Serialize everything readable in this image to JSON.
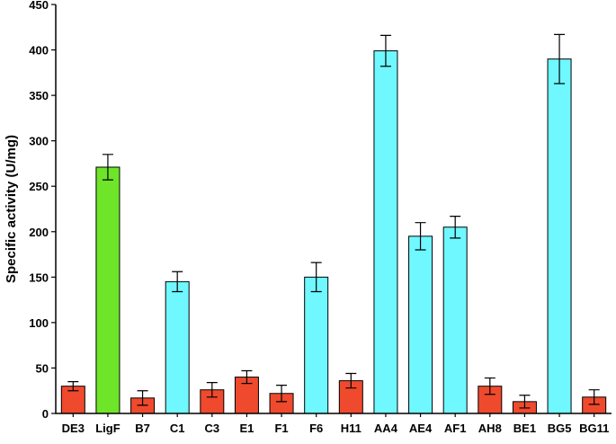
{
  "chart_data": {
    "type": "bar",
    "title": "",
    "xlabel": "",
    "ylabel": "Specific activity (U/mg)",
    "ylim": [
      0,
      450
    ],
    "yticks": [
      0,
      50,
      100,
      150,
      200,
      250,
      300,
      350,
      400,
      450
    ],
    "grid": false,
    "categories": [
      "DE3",
      "LigF",
      "B7",
      "C1",
      "C3",
      "E1",
      "F1",
      "F6",
      "H11",
      "AA4",
      "AE4",
      "AF1",
      "AH8",
      "BE1",
      "BG5",
      "BG11"
    ],
    "values": [
      30,
      271,
      17,
      145,
      26,
      40,
      22,
      150,
      36,
      399,
      195,
      205,
      30,
      13,
      390,
      18
    ],
    "errors": [
      5,
      14,
      8,
      11,
      8,
      7,
      9,
      16,
      8,
      17,
      15,
      12,
      9,
      7,
      27,
      8
    ],
    "colors": [
      "#ef4a2e",
      "#6fe52a",
      "#ef4a2e",
      "#6ff8ff",
      "#ef4a2e",
      "#ef4a2e",
      "#ef4a2e",
      "#6ff8ff",
      "#ef4a2e",
      "#6ff8ff",
      "#6ff8ff",
      "#6ff8ff",
      "#ef4a2e",
      "#ef4a2e",
      "#6ff8ff",
      "#ef4a2e"
    ]
  }
}
